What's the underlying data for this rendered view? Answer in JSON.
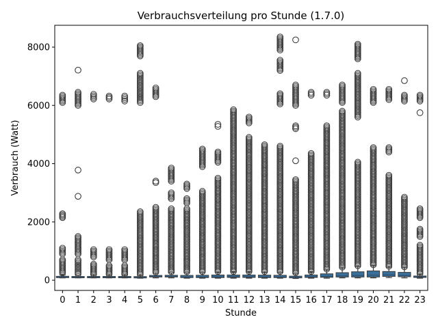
{
  "chart_data": {
    "type": "box",
    "title": "Verbrauchsverteilung pro Stunde (1.7.0)",
    "xlabel": "Stunde",
    "ylabel": "Verbrauch (Watt)",
    "ylim": [
      -350,
      8750
    ],
    "yticks": [
      0,
      2000,
      4000,
      6000,
      8000
    ],
    "grid": false,
    "legend": "none",
    "colors": {
      "box": "#3a6f9a",
      "outlier": "#3b3b3b",
      "median": "#2f4f6f"
    },
    "categories": [
      "0",
      "1",
      "2",
      "3",
      "4",
      "5",
      "6",
      "7",
      "8",
      "9",
      "10",
      "11",
      "12",
      "13",
      "14",
      "15",
      "16",
      "17",
      "18",
      "19",
      "20",
      "21",
      "22",
      "23"
    ],
    "boxes": [
      {
        "x": "0",
        "whisker_low": 80,
        "q1": 100,
        "median": 115,
        "q3": 135,
        "whisker_high": 180,
        "outliers": [
          [
            250,
            700
          ],
          [
            900,
            1100
          ],
          [
            2150,
            2280
          ],
          [
            6100,
            6350
          ]
        ]
      },
      {
        "x": "1",
        "whisker_low": 80,
        "q1": 95,
        "median": 110,
        "q3": 130,
        "whisker_high": 175,
        "outliers": [
          [
            220,
            700
          ],
          [
            900,
            1500
          ],
          [
            2880,
            2880
          ],
          [
            3780,
            3780
          ],
          [
            6000,
            6450
          ],
          [
            7210,
            7230
          ]
        ]
      },
      {
        "x": "2",
        "whisker_low": 80,
        "q1": 95,
        "median": 110,
        "q3": 130,
        "whisker_high": 175,
        "outliers": [
          [
            210,
            550
          ],
          [
            800,
            1050
          ],
          [
            6220,
            6380
          ]
        ]
      },
      {
        "x": "3",
        "whisker_low": 80,
        "q1": 95,
        "median": 110,
        "q3": 130,
        "whisker_high": 175,
        "outliers": [
          [
            210,
            500
          ],
          [
            700,
            1050
          ],
          [
            6220,
            6320
          ]
        ]
      },
      {
        "x": "4",
        "whisker_low": 80,
        "q1": 95,
        "median": 110,
        "q3": 130,
        "whisker_high": 175,
        "outliers": [
          [
            210,
            500
          ],
          [
            700,
            1050
          ],
          [
            6150,
            6320
          ]
        ]
      },
      {
        "x": "5",
        "whisker_low": 70,
        "q1": 90,
        "median": 105,
        "q3": 125,
        "whisker_high": 170,
        "outliers": [
          [
            200,
            2350
          ],
          [
            6100,
            7100
          ],
          [
            7700,
            8050
          ]
        ]
      },
      {
        "x": "6",
        "whisker_low": 80,
        "q1": 110,
        "median": 130,
        "q3": 165,
        "whisker_high": 240,
        "outliers": [
          [
            280,
            2500
          ],
          [
            3350,
            3400
          ],
          [
            6300,
            6600
          ]
        ]
      },
      {
        "x": "7",
        "whisker_low": 80,
        "q1": 110,
        "median": 130,
        "q3": 170,
        "whisker_high": 250,
        "outliers": [
          [
            290,
            2450
          ],
          [
            2800,
            3000
          ],
          [
            3400,
            3850
          ]
        ]
      },
      {
        "x": "8",
        "whisker_low": 70,
        "q1": 90,
        "median": 115,
        "q3": 165,
        "whisker_high": 250,
        "outliers": [
          [
            290,
            2450
          ],
          [
            2650,
            2800
          ],
          [
            3150,
            3300
          ]
        ]
      },
      {
        "x": "9",
        "whisker_low": 70,
        "q1": 90,
        "median": 115,
        "q3": 170,
        "whisker_high": 260,
        "outliers": [
          [
            300,
            3050
          ],
          [
            3900,
            4500
          ]
        ]
      },
      {
        "x": "10",
        "whisker_low": 70,
        "q1": 90,
        "median": 120,
        "q3": 180,
        "whisker_high": 270,
        "outliers": [
          [
            300,
            3500
          ],
          [
            4050,
            4400
          ],
          [
            5280,
            5350
          ]
        ]
      },
      {
        "x": "11",
        "whisker_low": 70,
        "q1": 95,
        "median": 125,
        "q3": 180,
        "whisker_high": 280,
        "outliers": [
          [
            300,
            5850
          ]
        ]
      },
      {
        "x": "12",
        "whisker_low": 70,
        "q1": 95,
        "median": 120,
        "q3": 180,
        "whisker_high": 280,
        "outliers": [
          [
            300,
            4900
          ],
          [
            5400,
            5600
          ]
        ]
      },
      {
        "x": "13",
        "whisker_low": 70,
        "q1": 90,
        "median": 115,
        "q3": 175,
        "whisker_high": 270,
        "outliers": [
          [
            300,
            4650
          ]
        ]
      },
      {
        "x": "14",
        "whisker_low": 70,
        "q1": 90,
        "median": 115,
        "q3": 170,
        "whisker_high": 260,
        "outliers": [
          [
            300,
            4600
          ],
          [
            6050,
            6400
          ],
          [
            7200,
            7550
          ],
          [
            7900,
            8350
          ]
        ]
      },
      {
        "x": "15",
        "whisker_low": 60,
        "q1": 80,
        "median": 100,
        "q3": 140,
        "whisker_high": 220,
        "outliers": [
          [
            260,
            3450
          ],
          [
            4100,
            4100
          ],
          [
            5200,
            5300
          ],
          [
            6000,
            6700
          ],
          [
            8250,
            8250
          ]
        ]
      },
      {
        "x": "16",
        "whisker_low": 70,
        "q1": 95,
        "median": 120,
        "q3": 180,
        "whisker_high": 280,
        "outliers": [
          [
            300,
            4350
          ],
          [
            6350,
            6450
          ]
        ]
      },
      {
        "x": "17",
        "whisker_low": 70,
        "q1": 100,
        "median": 130,
        "q3": 220,
        "whisker_high": 350,
        "outliers": [
          [
            380,
            5300
          ],
          [
            6350,
            6450
          ]
        ]
      },
      {
        "x": "18",
        "whisker_low": 80,
        "q1": 110,
        "median": 150,
        "q3": 260,
        "whisker_high": 420,
        "outliers": [
          [
            450,
            5800
          ],
          [
            6100,
            6700
          ]
        ]
      },
      {
        "x": "19",
        "whisker_low": 80,
        "q1": 110,
        "median": 160,
        "q3": 290,
        "whisker_high": 470,
        "outliers": [
          [
            500,
            4050
          ],
          [
            5600,
            7100
          ],
          [
            7600,
            8100
          ]
        ]
      },
      {
        "x": "20",
        "whisker_low": 80,
        "q1": 110,
        "median": 170,
        "q3": 320,
        "whisker_high": 500,
        "outliers": [
          [
            530,
            4550
          ],
          [
            6100,
            6550
          ]
        ]
      },
      {
        "x": "21",
        "whisker_low": 90,
        "q1": 130,
        "median": 180,
        "q3": 300,
        "whisker_high": 450,
        "outliers": [
          [
            480,
            3600
          ],
          [
            4400,
            4550
          ],
          [
            6200,
            6550
          ]
        ]
      },
      {
        "x": "22",
        "whisker_low": 80,
        "q1": 120,
        "median": 160,
        "q3": 270,
        "whisker_high": 430,
        "outliers": [
          [
            460,
            2850
          ],
          [
            6150,
            6350
          ],
          [
            6850,
            6850
          ]
        ]
      },
      {
        "x": "23",
        "whisker_low": 70,
        "q1": 95,
        "median": 115,
        "q3": 145,
        "whisker_high": 200,
        "outliers": [
          [
            230,
            1200
          ],
          [
            1500,
            1750
          ],
          [
            2150,
            2450
          ],
          [
            5750,
            5750
          ],
          [
            6150,
            6350
          ]
        ]
      }
    ]
  }
}
